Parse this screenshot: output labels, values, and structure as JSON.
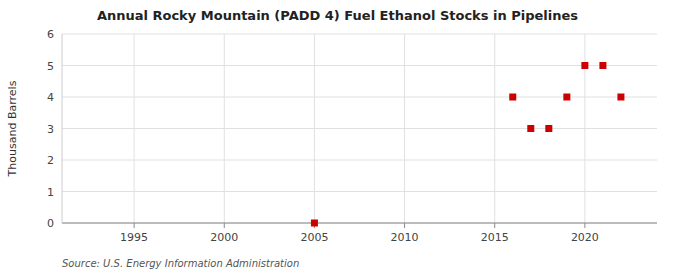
{
  "chart_data": {
    "type": "scatter",
    "title": "Annual Rocky Mountain (PADD 4) Fuel Ethanol Stocks in Pipelines",
    "y_label": "Thousand Barrels",
    "source": "Source: U.S. Energy Information Administration",
    "x": [
      2005,
      2016,
      2017,
      2018,
      2019,
      2020,
      2021,
      2022
    ],
    "values": [
      0,
      4,
      3,
      3,
      4,
      5,
      5,
      4
    ],
    "color": "#cc0000",
    "marker": "square",
    "xlim": [
      1991,
      2024
    ],
    "ylim": [
      0,
      6
    ],
    "xticks": [
      1995,
      2000,
      2005,
      2010,
      2015,
      2020
    ],
    "yticks": [
      0,
      1,
      2,
      3,
      4,
      5,
      6
    ],
    "grid": true
  }
}
